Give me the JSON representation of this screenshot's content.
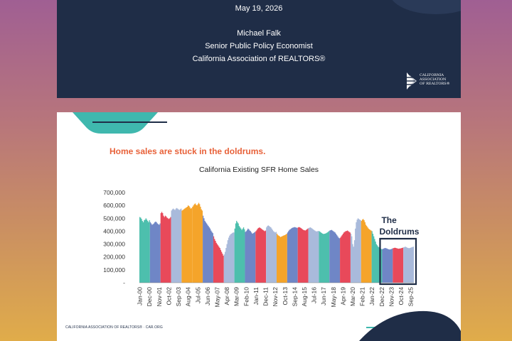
{
  "title_slide": {
    "date": "May 19, 2026",
    "presenter": "Michael Falk",
    "role": "Senior Public Policy Economist",
    "organization": "California Association of REALTORS®",
    "logo_lines": [
      "CALIFORNIA",
      "ASSOCIATION",
      "OF REALTORS®"
    ],
    "logo_icon": "car-logo-icon"
  },
  "chart_slide": {
    "headline": "Home sales are stuck in the doldrums.",
    "footer": "CALIFORNIA ASSOCIATION OF REALTORS® · CAR.ORG",
    "colors": {
      "navy": "#1f2d47",
      "teal": "#3fb8ae",
      "orange": "#e8623a",
      "bar_teal": "#4dbfad",
      "bar_blue": "#6f86c6",
      "bar_red": "#e8495a",
      "bar_lightblue": "#a9badb",
      "bar_orange": "#f5a42a"
    }
  },
  "chart_data": {
    "type": "area",
    "title": "California Existing SFR Home Sales",
    "xlabel": "",
    "ylabel": "",
    "ylim": [
      0,
      700000
    ],
    "yticks": [
      "700,000",
      "600,000",
      "500,000",
      "400,000",
      "300,000",
      "200,000",
      "100,000",
      "-"
    ],
    "xticks": [
      "Jan-00",
      "Dec-00",
      "Nov-01",
      "Oct-02",
      "Sep-03",
      "Aug-04",
      "Jul-05",
      "Jun-06",
      "May-07",
      "Apr-08",
      "Mar-09",
      "Feb-10",
      "Jan-11",
      "Dec-11",
      "Nov-12",
      "Oct-13",
      "Sep-14",
      "Aug-15",
      "Jul-16",
      "Jun-17",
      "May-18",
      "Apr-19",
      "Mar-20",
      "Feb-21",
      "Jan-22",
      "Dec-22",
      "Nov-23",
      "Oct-24",
      "Sep-25"
    ],
    "grid": false,
    "legend": "none",
    "annotation": {
      "label_line1": "The",
      "label_line2": "Doldrums",
      "from": "Jan-23",
      "to": "Dec-25"
    },
    "annual_colors": [
      "teal",
      "blue",
      "red",
      "lightblue",
      "orange",
      "orange",
      "blue",
      "red",
      "lightblue",
      "teal",
      "blue",
      "red",
      "lightblue",
      "orange",
      "blue",
      "red",
      "lightblue",
      "teal",
      "blue",
      "red",
      "lightblue",
      "orange",
      "teal",
      "blue",
      "red",
      "lightblue",
      "orange",
      "teal"
    ],
    "series": [
      {
        "start": "Jan-00",
        "step": "month",
        "values": [
          510000,
          505000,
          495000,
          480000,
          470000,
          485000,
          490000,
          500000,
          490000,
          480000,
          470000,
          485000,
          470000,
          460000,
          450000,
          455000,
          460000,
          470000,
          475000,
          470000,
          460000,
          455000,
          450000,
          460000,
          540000,
          550000,
          540000,
          520000,
          510000,
          520000,
          515000,
          505000,
          500000,
          495000,
          500000,
          510000,
          560000,
          570000,
          575000,
          570000,
          565000,
          575000,
          580000,
          575000,
          570000,
          565000,
          570000,
          575000,
          560000,
          565000,
          570000,
          575000,
          580000,
          585000,
          590000,
          600000,
          595000,
          585000,
          575000,
          580000,
          590000,
          600000,
          610000,
          615000,
          605000,
          600000,
          610000,
          620000,
          610000,
          590000,
          570000,
          560000,
          520000,
          500000,
          480000,
          470000,
          460000,
          450000,
          440000,
          430000,
          420000,
          405000,
          395000,
          385000,
          360000,
          340000,
          325000,
          310000,
          300000,
          290000,
          280000,
          270000,
          255000,
          240000,
          225000,
          210000,
          220000,
          240000,
          270000,
          300000,
          330000,
          350000,
          365000,
          375000,
          380000,
          385000,
          390000,
          390000,
          420000,
          460000,
          480000,
          470000,
          460000,
          440000,
          430000,
          420000,
          410000,
          420000,
          430000,
          415000,
          395000,
          400000,
          410000,
          420000,
          415000,
          405000,
          400000,
          390000,
          380000,
          385000,
          390000,
          395000,
          400000,
          410000,
          420000,
          425000,
          430000,
          425000,
          420000,
          415000,
          410000,
          405000,
          400000,
          405000,
          430000,
          440000,
          445000,
          440000,
          435000,
          430000,
          420000,
          410000,
          400000,
          395000,
          390000,
          395000,
          380000,
          370000,
          365000,
          360000,
          355000,
          358000,
          362000,
          365000,
          368000,
          370000,
          375000,
          380000,
          390000,
          400000,
          410000,
          415000,
          420000,
          425000,
          428000,
          430000,
          432000,
          430000,
          428000,
          425000,
          430000,
          432000,
          430000,
          425000,
          420000,
          415000,
          410000,
          408000,
          405000,
          410000,
          415000,
          420000,
          425000,
          428000,
          430000,
          425000,
          420000,
          415000,
          410000,
          405000,
          400000,
          398000,
          400000,
          402000,
          400000,
          395000,
          390000,
          385000,
          380000,
          378000,
          380000,
          382000,
          385000,
          390000,
          395000,
          400000,
          405000,
          408000,
          410000,
          405000,
          400000,
          395000,
          390000,
          380000,
          370000,
          360000,
          350000,
          345000,
          350000,
          360000,
          370000,
          380000,
          390000,
          395000,
          400000,
          402000,
          405000,
          400000,
          395000,
          390000,
          380000,
          360000,
          300000,
          280000,
          330000,
          420000,
          470000,
          490000,
          500000,
          495000,
          490000,
          485000,
          480000,
          490000,
          495000,
          485000,
          470000,
          450000,
          440000,
          430000,
          420000,
          415000,
          410000,
          405000,
          400000,
          380000,
          360000,
          340000,
          320000,
          300000,
          290000,
          280000,
          275000,
          270000,
          265000,
          260000,
          262000,
          265000,
          268000,
          270000,
          268000,
          265000,
          262000,
          260000,
          258000,
          260000,
          262000,
          265000,
          268000,
          270000,
          272000,
          270000,
          268000,
          266000,
          264000,
          265000,
          266000,
          268000,
          270000,
          272000,
          275000,
          278000,
          280000,
          276000,
          272000,
          270000,
          268000,
          270000,
          272000,
          275000,
          278000,
          280000
        ]
      }
    ]
  }
}
